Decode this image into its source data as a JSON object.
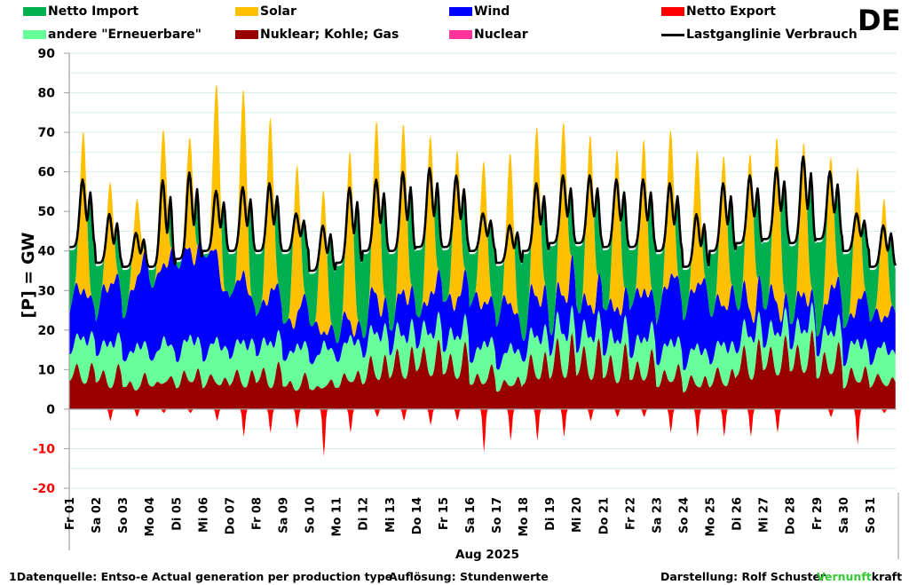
{
  "country_label": "DE",
  "legend": [
    {
      "label": "Netto Import",
      "color": "#00b050",
      "kind": "area"
    },
    {
      "label": "Solar",
      "color": "#ffc000",
      "kind": "area"
    },
    {
      "label": "Wind",
      "color": "#0000ff",
      "kind": "area"
    },
    {
      "label": "Netto Export",
      "color": "#ff0000",
      "kind": "area"
    },
    {
      "label": "andere \"Erneuerbare\"",
      "color": "#66ff99",
      "kind": "area"
    },
    {
      "label": "Nuklear; Kohle; Gas",
      "color": "#990000",
      "kind": "area"
    },
    {
      "label": "Nuclear",
      "color": "#ff3399",
      "kind": "area"
    },
    {
      "label": "Lastganglinie Verbrauch",
      "color": "#000000",
      "kind": "line"
    }
  ],
  "footer": {
    "source": "1Datenquelle: Entso-e  Actual generation per production type",
    "resolution": "Auflösung: Stundenwerte",
    "author": "Darstellung:  Rolf Schuster",
    "brand_green": "Vernunft",
    "brand_black": "kraft"
  },
  "chart_data": {
    "type": "area",
    "stacked": true,
    "title": "DE",
    "xlabel": "Aug 2025",
    "ylabel": "[P]  =  GW",
    "ylim": [
      -20,
      90
    ],
    "yticks": [
      90,
      80,
      70,
      60,
      50,
      40,
      30,
      20,
      10,
      0,
      -10,
      -20
    ],
    "ytick_negative_color": "#ff0000",
    "grid": true,
    "legend_position": "top",
    "resolution": "hourly (estimated daily profile approximated from image)",
    "categories": [
      "Fr 01",
      "Sa 02",
      "So 03",
      "Mo 04",
      "Di 05",
      "Mi 06",
      "Do 07",
      "Fr 08",
      "Sa 09",
      "So 10",
      "Mo 11",
      "Di 12",
      "Mi 13",
      "Do 14",
      "Fr 15",
      "Sa 16",
      "So 17",
      "Mo 18",
      "Di 19",
      "Mi 20",
      "Do 21",
      "Fr 22",
      "Sa 23",
      "So 24",
      "Mo 25",
      "Di 26",
      "Mi 27",
      "Do 28",
      "Fr 29",
      "Sa 30",
      "So 31"
    ],
    "daily": {
      "load_peak": [
        59,
        50,
        45,
        59,
        61,
        56,
        57,
        58,
        50,
        47,
        57,
        59,
        61,
        62,
        60,
        50,
        47,
        58,
        60,
        60,
        59,
        59,
        58,
        50,
        58,
        60,
        62,
        65,
        61,
        50,
        47
      ],
      "load_min": [
        41,
        37,
        36,
        36,
        38,
        40,
        40,
        40,
        40,
        35,
        37,
        40,
        40,
        41,
        41,
        40,
        37,
        40,
        42,
        42,
        41,
        41,
        40,
        36,
        40,
        42,
        43,
        42,
        43,
        40,
        36
      ],
      "fossil_peak": [
        14,
        13,
        10,
        9,
        13,
        10,
        12,
        14,
        10,
        8,
        12,
        18,
        20,
        21,
        20,
        13,
        10,
        19,
        25,
        22,
        20,
        18,
        14,
        11,
        13,
        22,
        22,
        24,
        21,
        14,
        10
      ],
      "fossil_min": [
        7,
        6,
        5,
        6,
        6,
        6,
        6,
        6,
        5,
        5,
        6,
        7,
        8,
        9,
        8,
        6,
        5,
        7,
        8,
        8,
        7,
        7,
        6,
        5,
        6,
        8,
        9,
        9,
        8,
        6,
        6
      ],
      "other_re": [
        8,
        8,
        8,
        8,
        8,
        8,
        8,
        8,
        8,
        8,
        8,
        8,
        7,
        7,
        7,
        7,
        7,
        7,
        7,
        7,
        7,
        7,
        7,
        7,
        7,
        7,
        7,
        7,
        7,
        7,
        7
      ],
      "wind": [
        10,
        12,
        14,
        20,
        22,
        25,
        16,
        12,
        10,
        9,
        4,
        6,
        8,
        8,
        10,
        12,
        12,
        9,
        8,
        10,
        8,
        10,
        12,
        16,
        14,
        10,
        8,
        6,
        6,
        10,
        10
      ],
      "solar_peak": [
        40,
        26,
        20,
        34,
        28,
        42,
        46,
        44,
        38,
        36,
        43,
        44,
        42,
        40,
        38,
        36,
        38,
        43,
        44,
        43,
        40,
        38,
        37,
        34,
        38,
        40,
        42,
        38,
        33,
        34,
        30
      ],
      "export_min": [
        0,
        -3,
        -2,
        -1,
        -1,
        -3,
        -7,
        -6,
        -5,
        -12,
        -6,
        -2,
        -3,
        -4,
        -3,
        -11,
        -8,
        -8,
        -7,
        -3,
        -2,
        -2,
        -6,
        -7,
        -7,
        -7,
        -6,
        0,
        -2,
        -9,
        -1
      ]
    }
  }
}
